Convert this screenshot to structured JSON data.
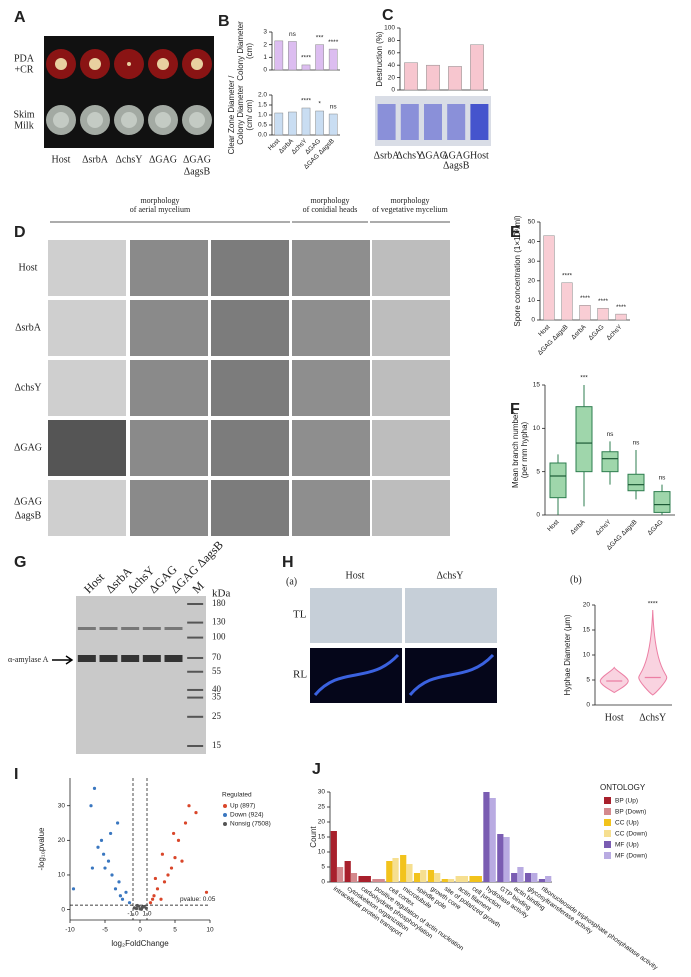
{
  "panels": {
    "A": {
      "label": "A",
      "row_labels": [
        [
          "PDA",
          "+CR"
        ],
        [
          "Skim",
          "Milk"
        ]
      ],
      "columns": [
        "Host",
        "ΔsrbA",
        "ΔchsY",
        "ΔGAG",
        [
          "ΔGAG",
          "ΔagsB"
        ]
      ]
    },
    "B": {
      "label": "B",
      "categories": [
        "Host",
        "ΔsrbA",
        "ΔchsY",
        "ΔGAG",
        "ΔGAG ΔagsB"
      ],
      "top": {
        "type": "bar",
        "ylabel": [
          "Colony Diameter",
          "(cm)"
        ],
        "ylim": [
          0,
          3
        ],
        "yticks": [
          0,
          1,
          2,
          3
        ],
        "values": [
          2.3,
          2.25,
          0.4,
          2.0,
          1.65
        ],
        "annotations": [
          null,
          "ns",
          "****",
          "***",
          "****"
        ],
        "color": "#dcbdf0"
      },
      "bottom": {
        "type": "bar",
        "ylabel": [
          "Clear Zone Diameter /",
          "Colony Diameter",
          "(cm/ cm)"
        ],
        "ylim": [
          0,
          2
        ],
        "yticks": [
          {
            "value": 0,
            "label": "0.0"
          },
          {
            "value": 0.5,
            "label": "0.5"
          },
          {
            "value": 1,
            "label": "1.0"
          },
          {
            "value": 1.5,
            "label": "1.5"
          },
          {
            "value": 2,
            "label": "2.0"
          }
        ],
        "values": [
          1.1,
          1.15,
          1.35,
          1.2,
          1.05
        ],
        "annotations": [
          null,
          null,
          "****",
          "*",
          "ns"
        ],
        "color": "#c9ddf2"
      }
    },
    "C": {
      "label": "C",
      "chart": {
        "type": "bar",
        "ylabel": "Destruction (%)",
        "ylim": [
          0,
          100
        ],
        "yticks": [
          0,
          20,
          40,
          60,
          80,
          100
        ],
        "values": [
          44,
          40,
          38,
          73
        ],
        "color": "#f7c6cf"
      },
      "photo_labels": [
        "ΔsrbA",
        "ΔchsY",
        "ΔGAG",
        [
          "ΔGAG",
          "ΔagsB"
        ],
        "Host"
      ]
    },
    "D": {
      "label": "D",
      "headers": [
        [
          "morphology",
          "of aerial mycelium"
        ],
        [
          "morphology",
          "of conidial heads"
        ],
        [
          "morphology",
          "of vegetative mycelium"
        ]
      ],
      "rows": [
        "Host",
        "ΔsrbA",
        "ΔchsY",
        "ΔGAG",
        [
          "ΔGAG",
          "ΔagsB"
        ]
      ]
    },
    "E": {
      "label": "E",
      "chart": {
        "type": "bar",
        "ylabel": "Spore concentration (1×10⁸/ml)",
        "ylim": [
          0,
          50
        ],
        "yticks": [
          0,
          10,
          20,
          30,
          40,
          50
        ],
        "categories": [
          "Host",
          "ΔGAG ΔagsB",
          "ΔsrbA",
          "ΔGAG",
          "ΔchsY"
        ],
        "values": [
          43,
          19,
          7.5,
          6,
          3
        ],
        "annotations": [
          null,
          "****",
          "****",
          "****",
          "****"
        ],
        "color": "#f9cdd4"
      }
    },
    "F": {
      "label": "F",
      "chart": {
        "type": "box",
        "ylabel": [
          "Mean branch number",
          "(per mm hypha)"
        ],
        "ylim": [
          0,
          15
        ],
        "yticks": [
          0,
          5,
          10,
          15
        ],
        "categories": [
          "Host",
          "ΔsrbA",
          "ΔchsY",
          "ΔGAG ΔagsB",
          "ΔGAG"
        ],
        "boxes": [
          [
            0,
            2,
            4.5,
            6,
            7
          ],
          [
            1,
            5,
            8.3,
            12.5,
            15
          ],
          [
            3.5,
            5,
            6.5,
            7.3,
            8.5
          ],
          [
            1.8,
            2.8,
            3.5,
            4.7,
            7.5
          ],
          [
            0,
            0.3,
            1.2,
            2.7,
            3.5
          ]
        ],
        "annotations": [
          null,
          "***",
          "ns",
          "ns",
          "ns"
        ],
        "color": "#9fd6ab"
      }
    },
    "G": {
      "label": "G",
      "lanes": [
        "Host",
        "ΔsrbA",
        "ΔchsY",
        "ΔGAG",
        "ΔGAG ΔagsB",
        "M"
      ],
      "unit": "kDa",
      "markers": [
        180,
        130,
        100,
        70,
        55,
        40,
        35,
        25,
        15
      ],
      "arrow_label": "α-amylase A"
    },
    "H": {
      "label": "H",
      "a": {
        "label": "(a)",
        "columns": [
          "Host",
          "ΔchsY"
        ],
        "rows": [
          "TL",
          "RL"
        ]
      },
      "b": {
        "label": "(b)",
        "type": "violin",
        "ylabel": "Hyphae Diameter (μm)",
        "ylim": [
          0,
          20
        ],
        "yticks": [
          0,
          5,
          10,
          15,
          20
        ],
        "categories": [
          "Host",
          "ΔchsY"
        ],
        "ranges": [
          [
            2.5,
            7.5
          ],
          [
            2,
            19
          ]
        ],
        "medians": [
          4.8,
          5.5
        ],
        "annotations": [
          null,
          "****"
        ],
        "color": "#ec7fa4"
      }
    },
    "I": {
      "label": "I",
      "chart": {
        "type": "scatter",
        "xlabel": "log₂FoldChange",
        "ylabel": "-log₁₀pvalue",
        "xlim": [
          -10,
          10
        ],
        "xticks": [
          -10,
          -5,
          0,
          5,
          10
        ],
        "ylim": [
          -3,
          38
        ],
        "yticks": [
          0,
          10,
          20,
          30
        ],
        "thresholds": [
          {
            "value": -1,
            "label": "-1.0"
          },
          {
            "value": 1,
            "label": "1.0"
          }
        ],
        "pvalue_line": 1.3,
        "pvalue_label": "pvalue: 0.05",
        "legend_title": "Regulated",
        "series": [
          {
            "name": "Up (897)",
            "color": "#d9462a",
            "x": [
              1.5,
              2,
              2.5,
              3,
              3.5,
              4,
              4.5,
              5,
              5.5,
              6,
              6.5,
              7,
              8,
              9.5,
              2.2,
              3.2,
              1.8,
              4.8
            ],
            "y": [
              2,
              4,
              6,
              3,
              8,
              10,
              12,
              15,
              20,
              14,
              25,
              30,
              28,
              5,
              9,
              16,
              3,
              22
            ]
          },
          {
            "name": "Down (924)",
            "color": "#3a77c0",
            "x": [
              -1.5,
              -2,
              -2.5,
              -3,
              -3.5,
              -4,
              -4.5,
              -5,
              -5.5,
              -6,
              -6.5,
              -7,
              -9.5,
              -3.2,
              -2.8,
              -6.8,
              -4.2,
              -5.2
            ],
            "y": [
              2,
              5,
              3,
              8,
              6,
              10,
              14,
              12,
              20,
              18,
              35,
              30,
              6,
              25,
              4,
              12,
              22,
              16
            ]
          },
          {
            "name": "Nonsig (7508)",
            "color": "#555555",
            "x": [
              -0.8,
              -0.5,
              -0.2,
              0,
              0.3,
              0.6,
              0.9,
              -0.4,
              0.2,
              0.5
            ],
            "y": [
              0.5,
              0.3,
              1,
              0.2,
              0.6,
              0.9,
              0.4,
              1.2,
              0.1,
              0.8
            ]
          }
        ]
      }
    },
    "J": {
      "label": "J",
      "chart": {
        "type": "bar",
        "ylabel": "Count",
        "ylim": [
          0,
          30
        ],
        "yticks": [
          0,
          5,
          10,
          15,
          20,
          25,
          30
        ],
        "legend_title": "ONTOLOGY",
        "categories": [
          "intracellular protein transport",
          "cytoskeleton organization",
          "carbohydrate phosphorylation",
          "positive regulation of actin nucleation",
          "cell cortex",
          "microtubule",
          "spindle pole",
          "growth cone",
          "site of polarized growth",
          "actin filament",
          "cell junction",
          "hydrolase activity",
          "GTP binding",
          "actin binding",
          "glycosyltransferase activity",
          "ribonucleoside triphosphate phosphatase activity"
        ],
        "series": [
          {
            "name": "BP (Up)",
            "color": "#a8202c",
            "values": [
              17,
              7,
              2,
              null,
              null,
              null,
              null,
              null,
              null,
              null,
              null,
              null,
              null,
              null,
              null,
              null
            ]
          },
          {
            "name": "BP (Down)",
            "color": "#d4898d",
            "values": [
              5,
              3,
              null,
              1,
              null,
              null,
              null,
              null,
              null,
              null,
              null,
              null,
              null,
              null,
              null,
              null
            ]
          },
          {
            "name": "CC (Up)",
            "color": "#f2c31c",
            "values": [
              null,
              null,
              null,
              null,
              7,
              9,
              3,
              4,
              1,
              null,
              2,
              null,
              null,
              null,
              null,
              null
            ]
          },
          {
            "name": "CC (Down)",
            "color": "#f6df90",
            "values": [
              null,
              null,
              null,
              null,
              8,
              6,
              4,
              3,
              1,
              2,
              null,
              null,
              null,
              null,
              null,
              null
            ]
          },
          {
            "name": "MF (Up)",
            "color": "#7a5cb2",
            "values": [
              null,
              null,
              null,
              null,
              null,
              null,
              null,
              null,
              null,
              null,
              null,
              30,
              16,
              3,
              3,
              1
            ]
          },
          {
            "name": "MF (Down)",
            "color": "#b9abe2",
            "values": [
              null,
              null,
              null,
              null,
              null,
              null,
              null,
              null,
              null,
              null,
              null,
              28,
              15,
              5,
              3,
              2
            ]
          }
        ]
      }
    }
  }
}
